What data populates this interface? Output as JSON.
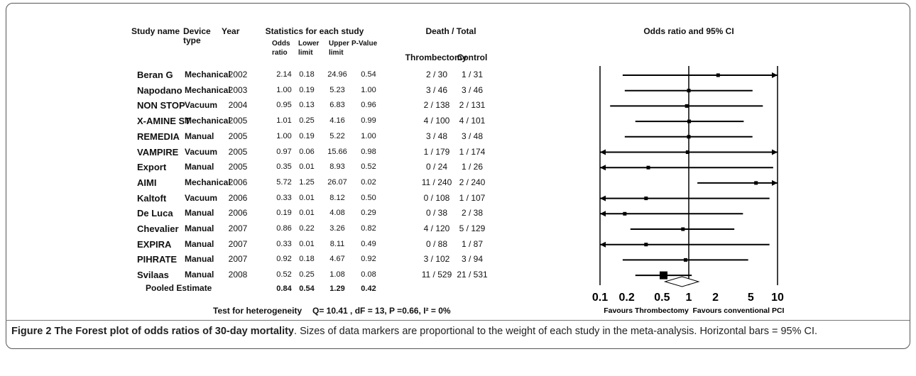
{
  "table": {
    "headers": {
      "study": "Study name",
      "device": "Device type",
      "year": "Year",
      "stats": "Statistics for each study",
      "odds_ratio": "Odds ratio",
      "lower": "Lower limit",
      "upper": "Upper limit",
      "p_value": "P-Value",
      "death_total": "Death / Total",
      "thrombectomy": "Thrombectomy",
      "control": "Control"
    },
    "rows": [
      [
        "Beran G",
        "Mechanical",
        "2002",
        "2.14",
        "0.18",
        "24.96",
        "0.54",
        "2 / 30",
        "1 / 31"
      ],
      [
        "Napodano",
        "Mechanical",
        "2003",
        "1.00",
        "0.19",
        "5.23",
        "1.00",
        "3 / 46",
        "3 / 46"
      ],
      [
        "NON STOP",
        "Vacuum",
        "2004",
        "0.95",
        "0.13",
        "6.83",
        "0.96",
        "2 / 138",
        "2 / 131"
      ],
      [
        "X-AMINE ST",
        "Mechanical",
        "2005",
        "1.01",
        "0.25",
        "4.16",
        "0.99",
        "4 / 100",
        "4 / 101"
      ],
      [
        "REMEDIA",
        "Manual",
        "2005",
        "1.00",
        "0.19",
        "5.22",
        "1.00",
        "3 / 48",
        "3 / 48"
      ],
      [
        "VAMPIRE",
        "Vacuum",
        "2005",
        "0.97",
        "0.06",
        "15.66",
        "0.98",
        "1 / 179",
        "1 / 174"
      ],
      [
        "Export",
        "Manual",
        "2005",
        "0.35",
        "0.01",
        "8.93",
        "0.52",
        "0 / 24",
        "1 / 26"
      ],
      [
        "AIMI",
        "Mechanical",
        "2006",
        "5.72",
        "1.25",
        "26.07",
        "0.02",
        "11 / 240",
        "2 / 240"
      ],
      [
        "Kaltoft",
        "Vacuum",
        "2006",
        "0.33",
        "0.01",
        "8.12",
        "0.50",
        "0 / 108",
        "1 / 107"
      ],
      [
        "De Luca",
        "Manual",
        "2006",
        "0.19",
        "0.01",
        "4.08",
        "0.29",
        "0 / 38",
        "2 / 38"
      ],
      [
        "Chevalier",
        "Manual",
        "2007",
        "0.86",
        "0.22",
        "3.26",
        "0.82",
        "4 / 120",
        "5 / 129"
      ],
      [
        "EXPIRA",
        "Manual",
        "2007",
        "0.33",
        "0.01",
        "8.11",
        "0.49",
        "0 / 88",
        "1 / 87"
      ],
      [
        "PIHRATE",
        "Manual",
        "2007",
        "0.92",
        "0.18",
        "4.67",
        "0.92",
        "3 / 102",
        "3 / 94"
      ],
      [
        "Svilaas",
        "Manual",
        "2008",
        "0.52",
        "0.25",
        "1.08",
        "0.08",
        "11 / 529",
        "21 / 531"
      ]
    ],
    "pooled": {
      "label": "Pooled Estimate",
      "odds_ratio": "0.84",
      "lower": "0.54",
      "upper": "1.29",
      "p_value": "0.42"
    },
    "heterogeneity_label": "Test for heterogeneity",
    "heterogeneity": "Q= 10.41 , dF = 13, P =0.66, I² = 0%"
  },
  "chart_data": {
    "type": "forest",
    "title": "Odds ratio and 95% CI",
    "log_x": true,
    "xlim": [
      0.1,
      10
    ],
    "xticks": [
      0.1,
      0.2,
      0.5,
      1,
      2,
      5,
      10
    ],
    "reference": 1,
    "xlabel_left": "Favours Thrombectomy",
    "xlabel_right": "Favours conventional PCI",
    "color": "#000000"
  },
  "caption": {
    "label": "Figure 2",
    "title": "The Forest plot of odds ratios of 30-day mortality",
    "text": ". Sizes of data markers are proportional to the weight of each study in the meta-analysis. Horizontal bars = 95% CI."
  }
}
